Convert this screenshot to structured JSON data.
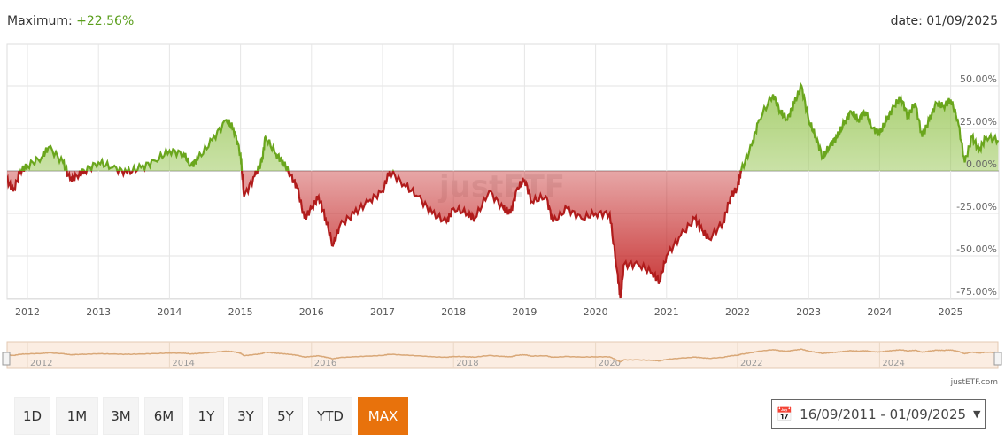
{
  "header": {
    "maximum_label": "Maximum:",
    "maximum_value": "+22.56%",
    "date_label": "date: 01/09/2025"
  },
  "chart_data": {
    "type": "area",
    "ylim": [
      -75,
      50
    ],
    "yticks": [
      "50.00%",
      "25.00%",
      "0.00%",
      "-25.00%",
      "-50.00%",
      "-75.00%"
    ],
    "ytick_values": [
      50,
      25,
      0,
      -25,
      -50,
      -75
    ],
    "xticks": [
      "2012",
      "2013",
      "2014",
      "2015",
      "2016",
      "2017",
      "2018",
      "2019",
      "2020",
      "2021",
      "2022",
      "2023",
      "2024",
      "2025"
    ],
    "xlim": [
      2011.71,
      2025.67
    ],
    "grid": true,
    "colors": {
      "positive": "#6aa61d",
      "negative": "#b11c1c"
    },
    "series": [
      {
        "x": [
          2011.71,
          2011.8,
          2011.9,
          2012.0,
          2012.2,
          2012.3,
          2012.5,
          2012.6,
          2012.7,
          2012.8,
          2013.0,
          2013.2,
          2013.4,
          2013.6,
          2013.8,
          2014.0,
          2014.2,
          2014.3,
          2014.4,
          2014.6,
          2014.8,
          2014.9,
          2015.0,
          2015.05,
          2015.2,
          2015.3,
          2015.35,
          2015.5,
          2015.6,
          2015.7,
          2015.8,
          2015.9,
          2016.0,
          2016.1,
          2016.2,
          2016.3,
          2016.4,
          2016.6,
          2016.8,
          2017.0,
          2017.1,
          2017.3,
          2017.5,
          2017.7,
          2017.9,
          2018.0,
          2018.2,
          2018.3,
          2018.5,
          2018.7,
          2018.8,
          2018.9,
          2019.0,
          2019.1,
          2019.3,
          2019.4,
          2019.6,
          2019.8,
          2020.0,
          2020.2,
          2020.3,
          2020.35,
          2020.4,
          2020.6,
          2020.8,
          2020.9,
          2021.0,
          2021.2,
          2021.4,
          2021.5,
          2021.6,
          2021.8,
          2021.9,
          2022.0,
          2022.05,
          2022.2,
          2022.3,
          2022.5,
          2022.6,
          2022.7,
          2022.8,
          2022.9,
          2023.0,
          2023.1,
          2023.2,
          2023.3,
          2023.4,
          2023.5,
          2023.6,
          2023.7,
          2023.8,
          2023.9,
          2024.0,
          2024.1,
          2024.2,
          2024.3,
          2024.4,
          2024.5,
          2024.6,
          2024.7,
          2024.8,
          2024.9,
          2025.0,
          2025.1,
          2025.2,
          2025.3,
          2025.4,
          2025.5,
          2025.67
        ],
        "y": [
          -5,
          -12,
          0,
          3,
          8,
          14,
          5,
          -5,
          -3,
          0,
          5,
          2,
          -1,
          2,
          6,
          12,
          10,
          3,
          7,
          18,
          30,
          25,
          10,
          -15,
          -3,
          5,
          20,
          10,
          5,
          -2,
          -10,
          -28,
          -22,
          -15,
          -28,
          -44,
          -32,
          -25,
          -18,
          -12,
          0,
          -8,
          -15,
          -25,
          -30,
          -22,
          -25,
          -28,
          -12,
          -22,
          -25,
          -10,
          -5,
          -18,
          -15,
          -30,
          -22,
          -28,
          -25,
          -25,
          -58,
          -75,
          -55,
          -55,
          -60,
          -65,
          -50,
          -38,
          -28,
          -35,
          -40,
          -30,
          -15,
          -10,
          0,
          15,
          30,
          45,
          35,
          30,
          40,
          50,
          30,
          20,
          8,
          15,
          20,
          28,
          35,
          30,
          35,
          25,
          22,
          30,
          38,
          43,
          32,
          40,
          20,
          30,
          40,
          38,
          42,
          30,
          5,
          20,
          12,
          20,
          18
        ]
      }
    ]
  },
  "navigator": {
    "labels": [
      "2012",
      "2014",
      "2016",
      "2018",
      "2020",
      "2022",
      "2024"
    ],
    "label_years": [
      2012,
      2014,
      2016,
      2018,
      2020,
      2022,
      2024
    ]
  },
  "watermark": "justETF",
  "credit": "justETF.com",
  "buttons": [
    "1D",
    "1M",
    "3M",
    "6M",
    "1Y",
    "3Y",
    "5Y",
    "YTD",
    "MAX"
  ],
  "active_button": "MAX",
  "date_range": "16/09/2011 - 01/09/2025",
  "icons": {
    "calendar": "calendar-icon",
    "caret": "caret-down-icon"
  }
}
